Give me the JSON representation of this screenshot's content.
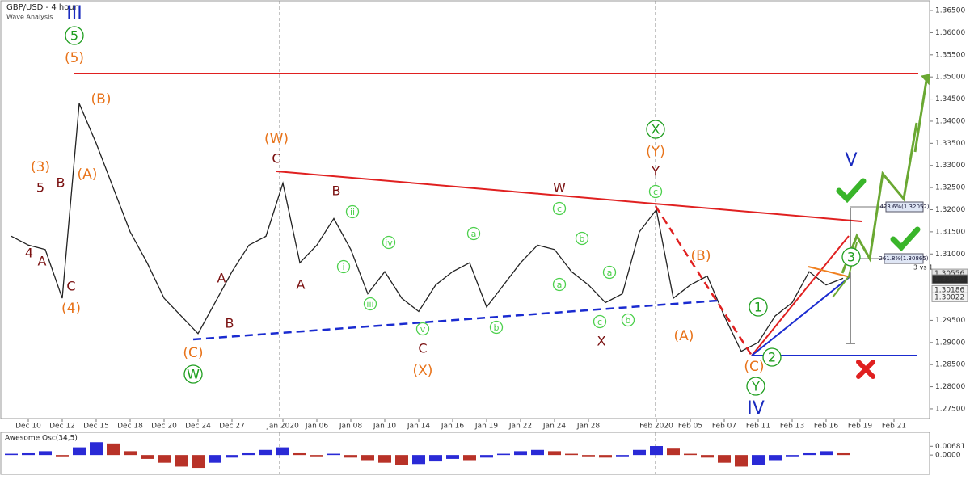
{
  "chart_data": [
    {
      "type": "line",
      "title": "GBP/USD - 4 hour",
      "subtitle": "Wave Analysis",
      "categories": [
        null,
        "Dec 10",
        null,
        "Dec 12",
        null,
        "Dec 15",
        null,
        "Dec 18",
        null,
        "Dec 20",
        null,
        "Dec 24",
        null,
        "Dec 27",
        null,
        null,
        "Jan 2020",
        null,
        "Jan 06",
        null,
        "Jan 08",
        null,
        "Jan 10",
        null,
        "Jan 14",
        null,
        "Jan 16",
        null,
        "Jan 19",
        null,
        "Jan 22",
        null,
        "Jan 24",
        null,
        "Jan 28",
        null,
        null,
        null,
        "Feb 2020",
        null,
        "Feb 05",
        null,
        "Feb 07",
        null,
        "Feb 11",
        null,
        "Feb 13",
        null,
        "Feb 16",
        null,
        "Feb 19",
        null,
        "Feb 21"
      ],
      "values": [
        1.314,
        1.312,
        1.311,
        1.3,
        1.344,
        1.335,
        1.325,
        1.315,
        1.308,
        1.3,
        1.296,
        1.292,
        1.299,
        1.306,
        1.312,
        1.314,
        1.326,
        1.308,
        1.312,
        1.318,
        1.311,
        1.301,
        1.306,
        1.3,
        1.297,
        1.303,
        1.306,
        1.308,
        1.298,
        1.303,
        1.308,
        1.312,
        1.311,
        1.306,
        1.303,
        1.299,
        1.301,
        1.315,
        1.32,
        1.3,
        1.303,
        1.305,
        1.296,
        1.288,
        1.29,
        1.296,
        1.299,
        1.306,
        1.303,
        1.3045,
        null,
        null,
        null
      ],
      "color": "#222222",
      "ylim": [
        1.2728,
        1.3672
      ],
      "yticks": [
        {
          "value": 1.365,
          "label": "1.36500"
        },
        {
          "value": 1.36,
          "label": "1.36000"
        },
        {
          "value": 1.355,
          "label": "1.35500"
        },
        {
          "value": 1.35,
          "label": "1.35000"
        },
        {
          "value": 1.345,
          "label": "1.34500"
        },
        {
          "value": 1.34,
          "label": "1.34000"
        },
        {
          "value": 1.335,
          "label": "1.33500"
        },
        {
          "value": 1.33,
          "label": "1.33000"
        },
        {
          "value": 1.325,
          "label": "1.32500"
        },
        {
          "value": 1.32,
          "label": "1.32000"
        },
        {
          "value": 1.315,
          "label": "1.31500"
        },
        {
          "value": 1.31,
          "label": "1.31000"
        },
        {
          "value": 1.295,
          "label": "1.29500"
        },
        {
          "value": 1.29,
          "label": "1.29000"
        },
        {
          "value": 1.285,
          "label": "1.28500"
        },
        {
          "value": 1.28,
          "label": "1.28000"
        },
        {
          "value": 1.275,
          "label": "1.27500"
        }
      ],
      "price_labels": [
        {
          "value": 1.30556,
          "label": "1.30556"
        },
        {
          "value": 1.3043,
          "label": "1.30430"
        },
        {
          "value": 1.30186,
          "label": "1.30186"
        },
        {
          "value": 1.30022,
          "label": "1.30022"
        }
      ],
      "annotations": [
        "III",
        "5",
        "(5)",
        "(B)",
        "(A)",
        "(3)",
        "5",
        "B",
        "4",
        "A",
        "C",
        "(4)",
        "(W)",
        "C",
        "B",
        "A",
        "B",
        "A",
        "(C)",
        "W",
        "ii",
        "iv",
        "i",
        "iii",
        "v",
        "C",
        "(X)",
        "a",
        "b",
        "c",
        "b",
        "a",
        "a",
        "c",
        "b",
        "W",
        "X",
        "X",
        "(Y)",
        "Y",
        "c",
        "(B)",
        "(A)",
        "1",
        "2",
        "(C)",
        "Y",
        "IV",
        "V",
        "3"
      ],
      "fib_labels": [
        "423.6%(1.32052)",
        "261.8%(1.30865)"
      ],
      "note": "3 vs 1"
    },
    {
      "type": "bar",
      "title": "Awesome Osc(34,5)",
      "values": [
        0.001,
        0.002,
        0.003,
        -0.001,
        0.006,
        0.01,
        0.009,
        0.003,
        -0.003,
        -0.006,
        -0.009,
        -0.01,
        -0.006,
        -0.002,
        0.002,
        0.004,
        0.006,
        0.002,
        -0.001,
        0.001,
        -0.002,
        -0.004,
        -0.006,
        -0.008,
        -0.007,
        -0.005,
        -0.003,
        -0.004,
        -0.002,
        0.001,
        0.003,
        0.004,
        0.003,
        0.001,
        -0.001,
        -0.002,
        -0.001,
        0.004,
        0.007,
        0.005,
        0.001,
        -0.002,
        -0.006,
        -0.009,
        -0.008,
        -0.004,
        -0.001,
        0.002,
        0.003,
        0.002,
        null,
        null,
        null
      ],
      "up_color": "#2a2ad6",
      "down_color": "#b83228",
      "ylim": [
        -0.015,
        0.0177
      ],
      "yticks": [
        {
          "value": 0.00681,
          "label": "0.00681"
        },
        {
          "value": 0,
          "label": "0.0000"
        }
      ]
    }
  ]
}
